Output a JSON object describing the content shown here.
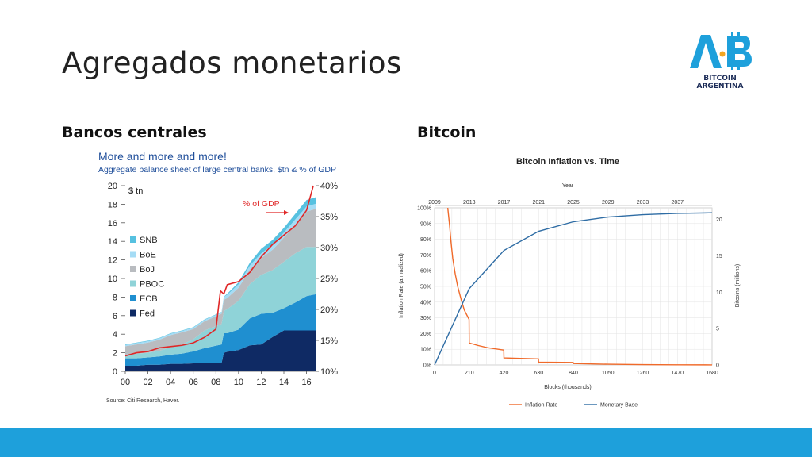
{
  "slide": {
    "title": "Agregados monetarios",
    "left_heading": "Bancos centrales",
    "right_heading": "Bitcoin"
  },
  "logo": {
    "letters_a": "A",
    "letters_b": "B",
    "line1": "BITCOIN",
    "line2": "ARGENTINA",
    "brand_color": "#1ea0db",
    "text_color": "#1a2a56"
  },
  "colors": {
    "bottom_bar": "#1ea0db"
  },
  "chart_data": [
    {
      "type": "area",
      "title": "More and more and more!",
      "subtitle": "Aggregate balance sheet of large central banks, $tn & % of GDP",
      "ylabel": "$ tn",
      "source": "Source: Citi Research, Haver.",
      "x_ticks": [
        "00",
        "02",
        "04",
        "06",
        "08",
        "10",
        "12",
        "14",
        "16"
      ],
      "x_tick_values": [
        2000,
        2002,
        2004,
        2006,
        2008,
        2010,
        2012,
        2014,
        2016
      ],
      "xlim": [
        2000,
        2016.8
      ],
      "ylim": [
        0,
        20
      ],
      "y_ticks": [
        "0",
        "2",
        "4",
        "6",
        "8",
        "10",
        "12",
        "14",
        "16",
        "18",
        "20"
      ],
      "y_tick_values": [
        0,
        2,
        4,
        6,
        8,
        10,
        12,
        14,
        16,
        18,
        20
      ],
      "y2_ticks": [
        "10%",
        "15%",
        "20%",
        "25%",
        "30%",
        "35%",
        "40%"
      ],
      "y2_tick_values": [
        10,
        15,
        20,
        25,
        30,
        35,
        40
      ],
      "y2lim": [
        10,
        40
      ],
      "annotation": "% of GDP",
      "x": [
        2000,
        2001,
        2002,
        2003,
        2004,
        2005,
        2006,
        2007,
        2008.5,
        2008.7,
        2009,
        2010,
        2011,
        2012,
        2013,
        2014,
        2015,
        2016,
        2016.8
      ],
      "series": [
        {
          "name": "Fed",
          "color": "#0f2a64",
          "values": [
            0.6,
            0.6,
            0.7,
            0.7,
            0.8,
            0.8,
            0.85,
            0.9,
            0.9,
            2.0,
            2.1,
            2.3,
            2.8,
            2.9,
            3.7,
            4.4,
            4.4,
            4.4,
            4.4
          ]
        },
        {
          "name": "ECB",
          "color": "#1f8fd0",
          "values": [
            0.8,
            0.8,
            0.8,
            0.9,
            1.0,
            1.1,
            1.3,
            1.6,
            2.0,
            2.1,
            2.0,
            2.2,
            2.9,
            3.3,
            2.6,
            2.4,
            3.0,
            3.7,
            3.9
          ]
        },
        {
          "name": "PBOC",
          "color": "#8fd3d8",
          "values": [
            0.4,
            0.5,
            0.5,
            0.6,
            0.8,
            1.0,
            1.3,
            1.9,
            2.2,
            2.4,
            2.6,
            3.1,
            3.7,
            4.2,
            4.6,
            5.0,
            5.3,
            5.3,
            5.1
          ]
        },
        {
          "name": "BoJ",
          "color": "#b9bcc0",
          "values": [
            0.9,
            1.0,
            1.1,
            1.2,
            1.3,
            1.3,
            1.1,
            1.0,
            1.1,
            1.2,
            1.2,
            1.4,
            1.6,
            1.8,
            2.2,
            2.6,
            3.1,
            3.8,
            4.1
          ]
        },
        {
          "name": "BoE",
          "color": "#a5dcf5",
          "values": [
            0.15,
            0.15,
            0.15,
            0.15,
            0.15,
            0.15,
            0.15,
            0.15,
            0.15,
            0.3,
            0.35,
            0.38,
            0.4,
            0.5,
            0.55,
            0.55,
            0.55,
            0.55,
            0.55
          ]
        },
        {
          "name": "SNB",
          "color": "#56c1e0",
          "values": [
            0.05,
            0.05,
            0.05,
            0.05,
            0.05,
            0.05,
            0.05,
            0.05,
            0.05,
            0.05,
            0.1,
            0.2,
            0.3,
            0.5,
            0.5,
            0.5,
            0.6,
            0.7,
            0.7
          ]
        }
      ],
      "gdp_line": {
        "name": "% of GDP",
        "color": "#e02626",
        "x": [
          2000,
          2001,
          2002,
          2003,
          2004,
          2005,
          2006,
          2007,
          2008,
          2008.4,
          2008.7,
          2009,
          2010,
          2011,
          2012,
          2013,
          2014,
          2015,
          2016,
          2016.6
        ],
        "values": [
          12.5,
          13.0,
          13.2,
          13.8,
          14.0,
          14.2,
          14.6,
          15.5,
          16.8,
          23.0,
          22.5,
          24.0,
          24.5,
          26.0,
          28.5,
          30.5,
          32.0,
          33.5,
          36.0,
          40.0
        ]
      }
    },
    {
      "type": "line",
      "title": "Bitcoin Inflation vs. Time",
      "xlabel": "Blocks (thousands)",
      "x2label": "Year",
      "ylabel": "Inflation Rate (annualized)",
      "y2label": "Bitcoins (millions)",
      "xlim": [
        0,
        1680
      ],
      "ylim": [
        0,
        100
      ],
      "y2lim": [
        0,
        21.6
      ],
      "x_ticks": [
        "0",
        "210",
        "420",
        "630",
        "840",
        "1050",
        "1260",
        "1470",
        "1680"
      ],
      "x_tick_values": [
        0,
        210,
        420,
        630,
        840,
        1050,
        1260,
        1470,
        1680
      ],
      "x2_ticks": [
        "2009",
        "2013",
        "2017",
        "2021",
        "2025",
        "2029",
        "2033",
        "2037"
      ],
      "x2_tick_values": [
        0,
        210,
        420,
        630,
        840,
        1050,
        1260,
        1470
      ],
      "y_ticks": [
        "0%",
        "10%",
        "20%",
        "30%",
        "40%",
        "50%",
        "60%",
        "70%",
        "80%",
        "90%",
        "100%"
      ],
      "y_tick_values": [
        0,
        10,
        20,
        30,
        40,
        50,
        60,
        70,
        80,
        90,
        100
      ],
      "y2_ticks": [
        "0",
        "5",
        "10",
        "15",
        "20"
      ],
      "y2_tick_values": [
        0,
        5,
        10,
        15,
        20
      ],
      "series": [
        {
          "name": "Inflation Rate",
          "color": "#f06a2a",
          "axis": "left",
          "x": [
            80,
            90,
            100,
            110,
            125,
            140,
            160,
            180,
            209,
            210,
            260,
            320,
            419,
            420,
            520,
            629,
            630,
            839,
            840,
            1050,
            1260,
            1470,
            1680
          ],
          "values": [
            100,
            90,
            78,
            68,
            58,
            50,
            42,
            35,
            29,
            14,
            12.5,
            11,
            9.5,
            4.5,
            4.2,
            3.9,
            1.8,
            1.6,
            0.9,
            0.45,
            0.22,
            0.11,
            0.05
          ]
        },
        {
          "name": "Monetary Base",
          "color": "#2e6ca4",
          "axis": "right",
          "x": [
            0,
            210,
            420,
            630,
            840,
            1050,
            1260,
            1470,
            1680
          ],
          "values": [
            0,
            10.5,
            15.75,
            18.375,
            19.69,
            20.34,
            20.67,
            20.84,
            20.92
          ]
        }
      ],
      "legend": "bottom"
    }
  ]
}
